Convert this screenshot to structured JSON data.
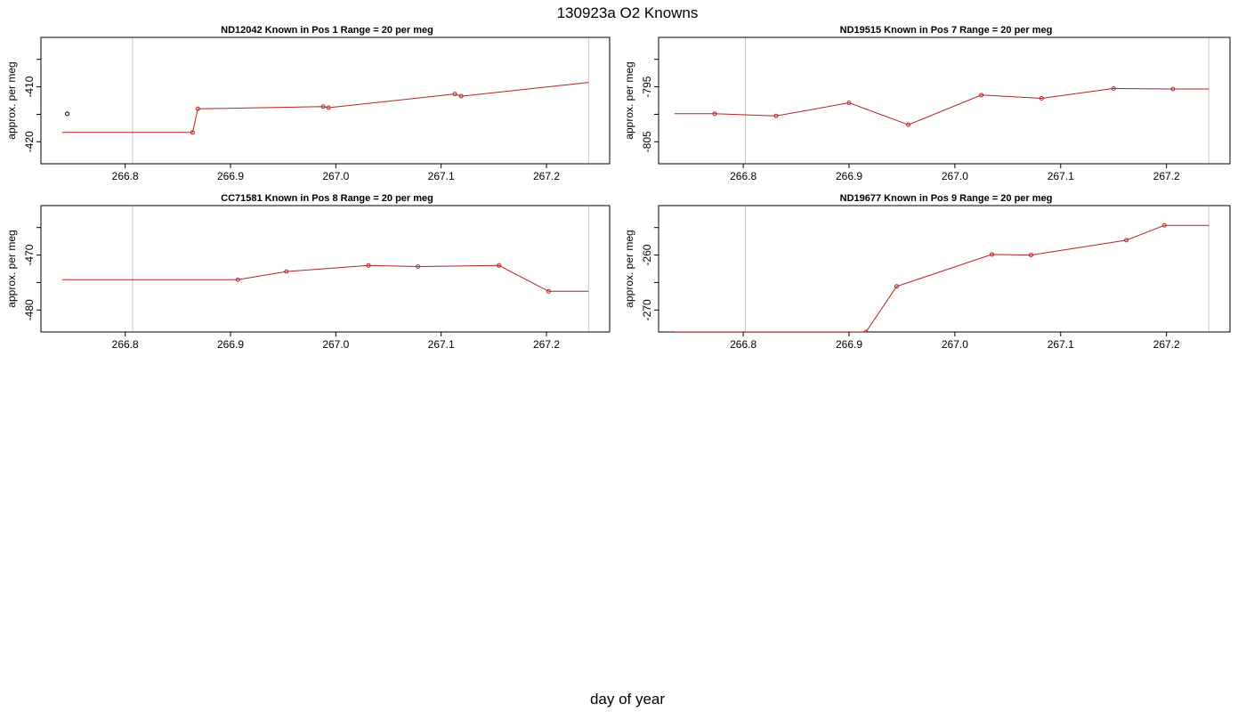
{
  "title": "130923a   O2 Knowns",
  "xlabel": "day of year",
  "chart_data": [
    {
      "type": "line",
      "title": "ND12042    Known in Pos 1          Range = 20 per meg",
      "ylabel": "approx. per meg",
      "xlim": [
        266.72,
        267.26
      ],
      "ylim": [
        -424,
        -401
      ],
      "xticks": [
        266.8,
        266.9,
        267.0,
        267.1,
        267.2
      ],
      "xtick_labels": [
        "266.8",
        "266.9",
        "267.0",
        "267.1",
        "267.2"
      ],
      "yticks": [
        -420,
        -415,
        -410,
        -405
      ],
      "ytick_labels": [
        "-420",
        "",
        "-410",
        ""
      ],
      "vlines": [
        266.807,
        267.24
      ],
      "series": [
        {
          "color": "#b22222",
          "x": [
            266.74,
            266.864,
            266.869,
            266.988,
            266.993,
            267.113,
            267.119,
            267.24
          ],
          "y": [
            -418.3,
            -418.3,
            -414.0,
            -413.6,
            -413.8,
            -411.3,
            -411.7,
            -409.2
          ]
        }
      ],
      "extra_points": [
        {
          "x": 266.745,
          "y": -414.9,
          "color": "#000000"
        }
      ]
    },
    {
      "type": "line",
      "title": "ND19515    Known in Pos 7          Range = 20 per meg",
      "ylabel": "approx. per meg",
      "xlim": [
        266.72,
        267.26
      ],
      "ylim": [
        -809,
        -786
      ],
      "xticks": [
        266.8,
        266.9,
        267.0,
        267.1,
        267.2
      ],
      "xtick_labels": [
        "266.8",
        "266.9",
        "267.0",
        "267.1",
        "267.2"
      ],
      "yticks": [
        -805,
        -800,
        -795,
        -790
      ],
      "ytick_labels": [
        "-805",
        "",
        "-795",
        ""
      ],
      "vlines": [
        266.802,
        267.24
      ],
      "series": [
        {
          "color": "#b22222",
          "x": [
            266.735,
            266.773,
            266.831,
            266.9,
            266.956,
            267.025,
            267.082,
            267.15,
            267.206,
            267.24
          ],
          "y": [
            -799.9,
            -799.9,
            -800.3,
            -797.9,
            -801.9,
            -796.5,
            -797.1,
            -795.3,
            -795.4,
            -795.4
          ]
        }
      ]
    },
    {
      "type": "line",
      "title": "CC71581    Known in Pos 8          Range = 20 per meg",
      "ylabel": "approx. per meg",
      "xlim": [
        266.72,
        267.26
      ],
      "ylim": [
        -484,
        -461
      ],
      "xticks": [
        266.8,
        266.9,
        267.0,
        267.1,
        267.2
      ],
      "xtick_labels": [
        "266.8",
        "266.9",
        "267.0",
        "267.1",
        "267.2"
      ],
      "yticks": [
        -480,
        -475,
        -470,
        -465
      ],
      "ytick_labels": [
        "-480",
        "",
        "-470",
        ""
      ],
      "vlines": [
        266.807,
        267.24
      ],
      "series": [
        {
          "color": "#b22222",
          "x": [
            266.74,
            266.907,
            266.953,
            267.031,
            267.078,
            267.155,
            267.202,
            267.24
          ],
          "y": [
            -474.5,
            -474.5,
            -473.0,
            -471.9,
            -472.1,
            -471.9,
            -476.6,
            -476.6
          ]
        }
      ]
    },
    {
      "type": "line",
      "title": "ND19677    Known in Pos 9          Range = 20 per meg",
      "ylabel": "approx. per meg",
      "xlim": [
        266.72,
        267.26
      ],
      "ylim": [
        -274,
        -251
      ],
      "xticks": [
        266.8,
        266.9,
        267.0,
        267.1,
        267.2
      ],
      "xtick_labels": [
        "266.8",
        "266.9",
        "267.0",
        "267.1",
        "267.2"
      ],
      "yticks": [
        -270,
        -265,
        -260,
        -255
      ],
      "ytick_labels": [
        "-270",
        "",
        "-260",
        ""
      ],
      "vlines": [
        266.802,
        267.24
      ],
      "series": [
        {
          "color": "#b22222",
          "x": [
            266.735,
            266.916,
            266.945,
            267.035,
            267.072,
            267.162,
            267.198,
            267.24
          ],
          "y": [
            -274.0,
            -274.0,
            -265.7,
            -259.9,
            -260.0,
            -257.3,
            -254.6,
            -254.6
          ]
        }
      ]
    }
  ]
}
